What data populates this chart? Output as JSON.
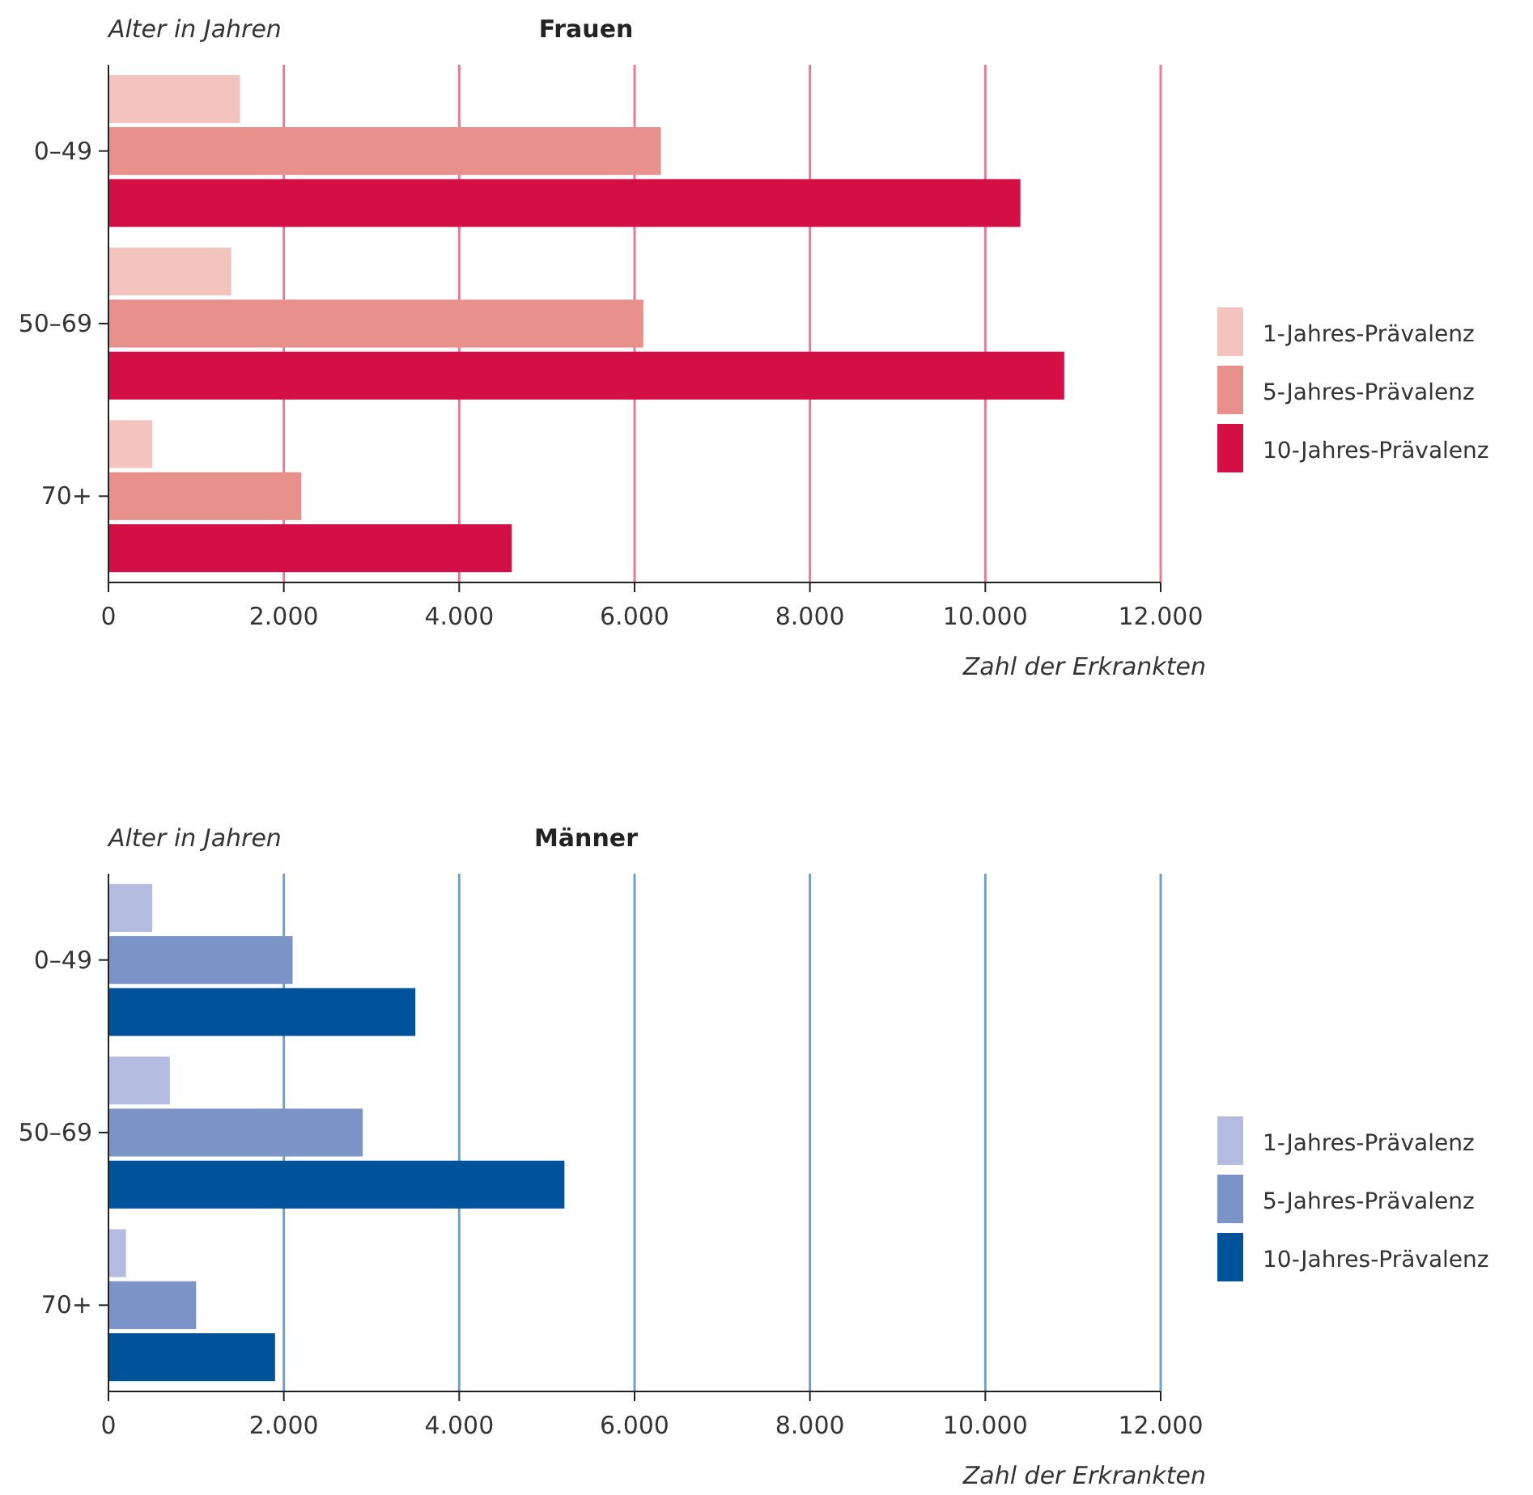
{
  "chart_data": [
    {
      "type": "bar",
      "orientation": "horizontal",
      "title": "Frauen",
      "ylabel": "Alter in Jahren",
      "xlabel": "Zahl der Erkrankten",
      "categories": [
        "0–49",
        "50–69",
        "70+"
      ],
      "series": [
        {
          "name": "1-Jahres-Prävalenz",
          "color": "#f2c4bd",
          "values": [
            1500,
            1400,
            500
          ]
        },
        {
          "name": "5-Jahres-Prävalenz",
          "color": "#e8918c",
          "values": [
            6300,
            6100,
            2200
          ]
        },
        {
          "name": "10-Jahres-Prävalenz",
          "color": "#d40f45",
          "values": [
            10400,
            10900,
            4600
          ]
        }
      ],
      "xlim": [
        0,
        12000
      ],
      "xticks": [
        0,
        {
          "value": 2000,
          "label": "2.000"
        },
        {
          "value": 4000,
          "label": "4.000"
        },
        {
          "value": 6000,
          "label": "6.000"
        },
        {
          "value": 8000,
          "label": "8.000"
        },
        {
          "value": 10000,
          "label": "10.000"
        },
        {
          "value": 12000,
          "label": "12.000"
        }
      ],
      "grid": "x",
      "legend": "right"
    },
    {
      "type": "bar",
      "orientation": "horizontal",
      "title": "Männer",
      "ylabel": "Alter in Jahren",
      "xlabel": "Zahl der Erkrankten",
      "categories": [
        "0–49",
        "50–69",
        "70+"
      ],
      "series": [
        {
          "name": "1-Jahres-Prävalenz",
          "color": "#b3bce0",
          "values": [
            500,
            700,
            200
          ]
        },
        {
          "name": "5-Jahres-Prävalenz",
          "color": "#7b93c6",
          "values": [
            2100,
            2900,
            1000
          ]
        },
        {
          "name": "10-Jahres-Prävalenz",
          "color": "#00529b",
          "values": [
            3500,
            5200,
            1900
          ]
        }
      ],
      "xlim": [
        0,
        12000
      ],
      "xticks": [
        0,
        {
          "value": 2000,
          "label": "2.000"
        },
        {
          "value": 4000,
          "label": "4.000"
        },
        {
          "value": 6000,
          "label": "6.000"
        },
        {
          "value": 8000,
          "label": "8.000"
        },
        {
          "value": 10000,
          "label": "10.000"
        },
        {
          "value": 12000,
          "label": "12.000"
        }
      ],
      "grid": "x",
      "legend": "right"
    }
  ]
}
